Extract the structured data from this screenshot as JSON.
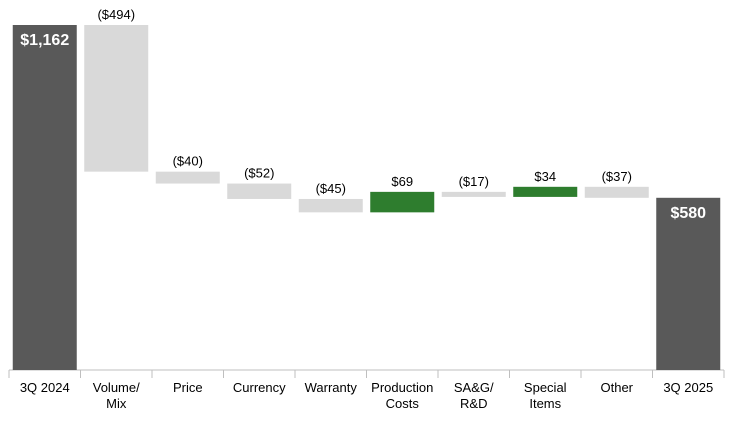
{
  "chart_data": {
    "type": "waterfall",
    "categories": [
      "3Q 2024",
      "Volume/\nMix",
      "Price",
      "Currency",
      "Warranty",
      "Production\nCosts",
      "SA&G/\nR&D",
      "Special\nItems",
      "Other",
      "3Q 2025"
    ],
    "values": [
      1162,
      -494,
      -40,
      -52,
      -45,
      69,
      -17,
      34,
      -37,
      580
    ],
    "value_labels": [
      "$1,162",
      "($494)",
      "($40)",
      "($52)",
      "($45)",
      "$69",
      "($17)",
      "$34",
      "($37)",
      "$580"
    ],
    "total_color": "#595959",
    "increase_color": "#2e7d2e",
    "decrease_color": "#d9d9d9"
  }
}
